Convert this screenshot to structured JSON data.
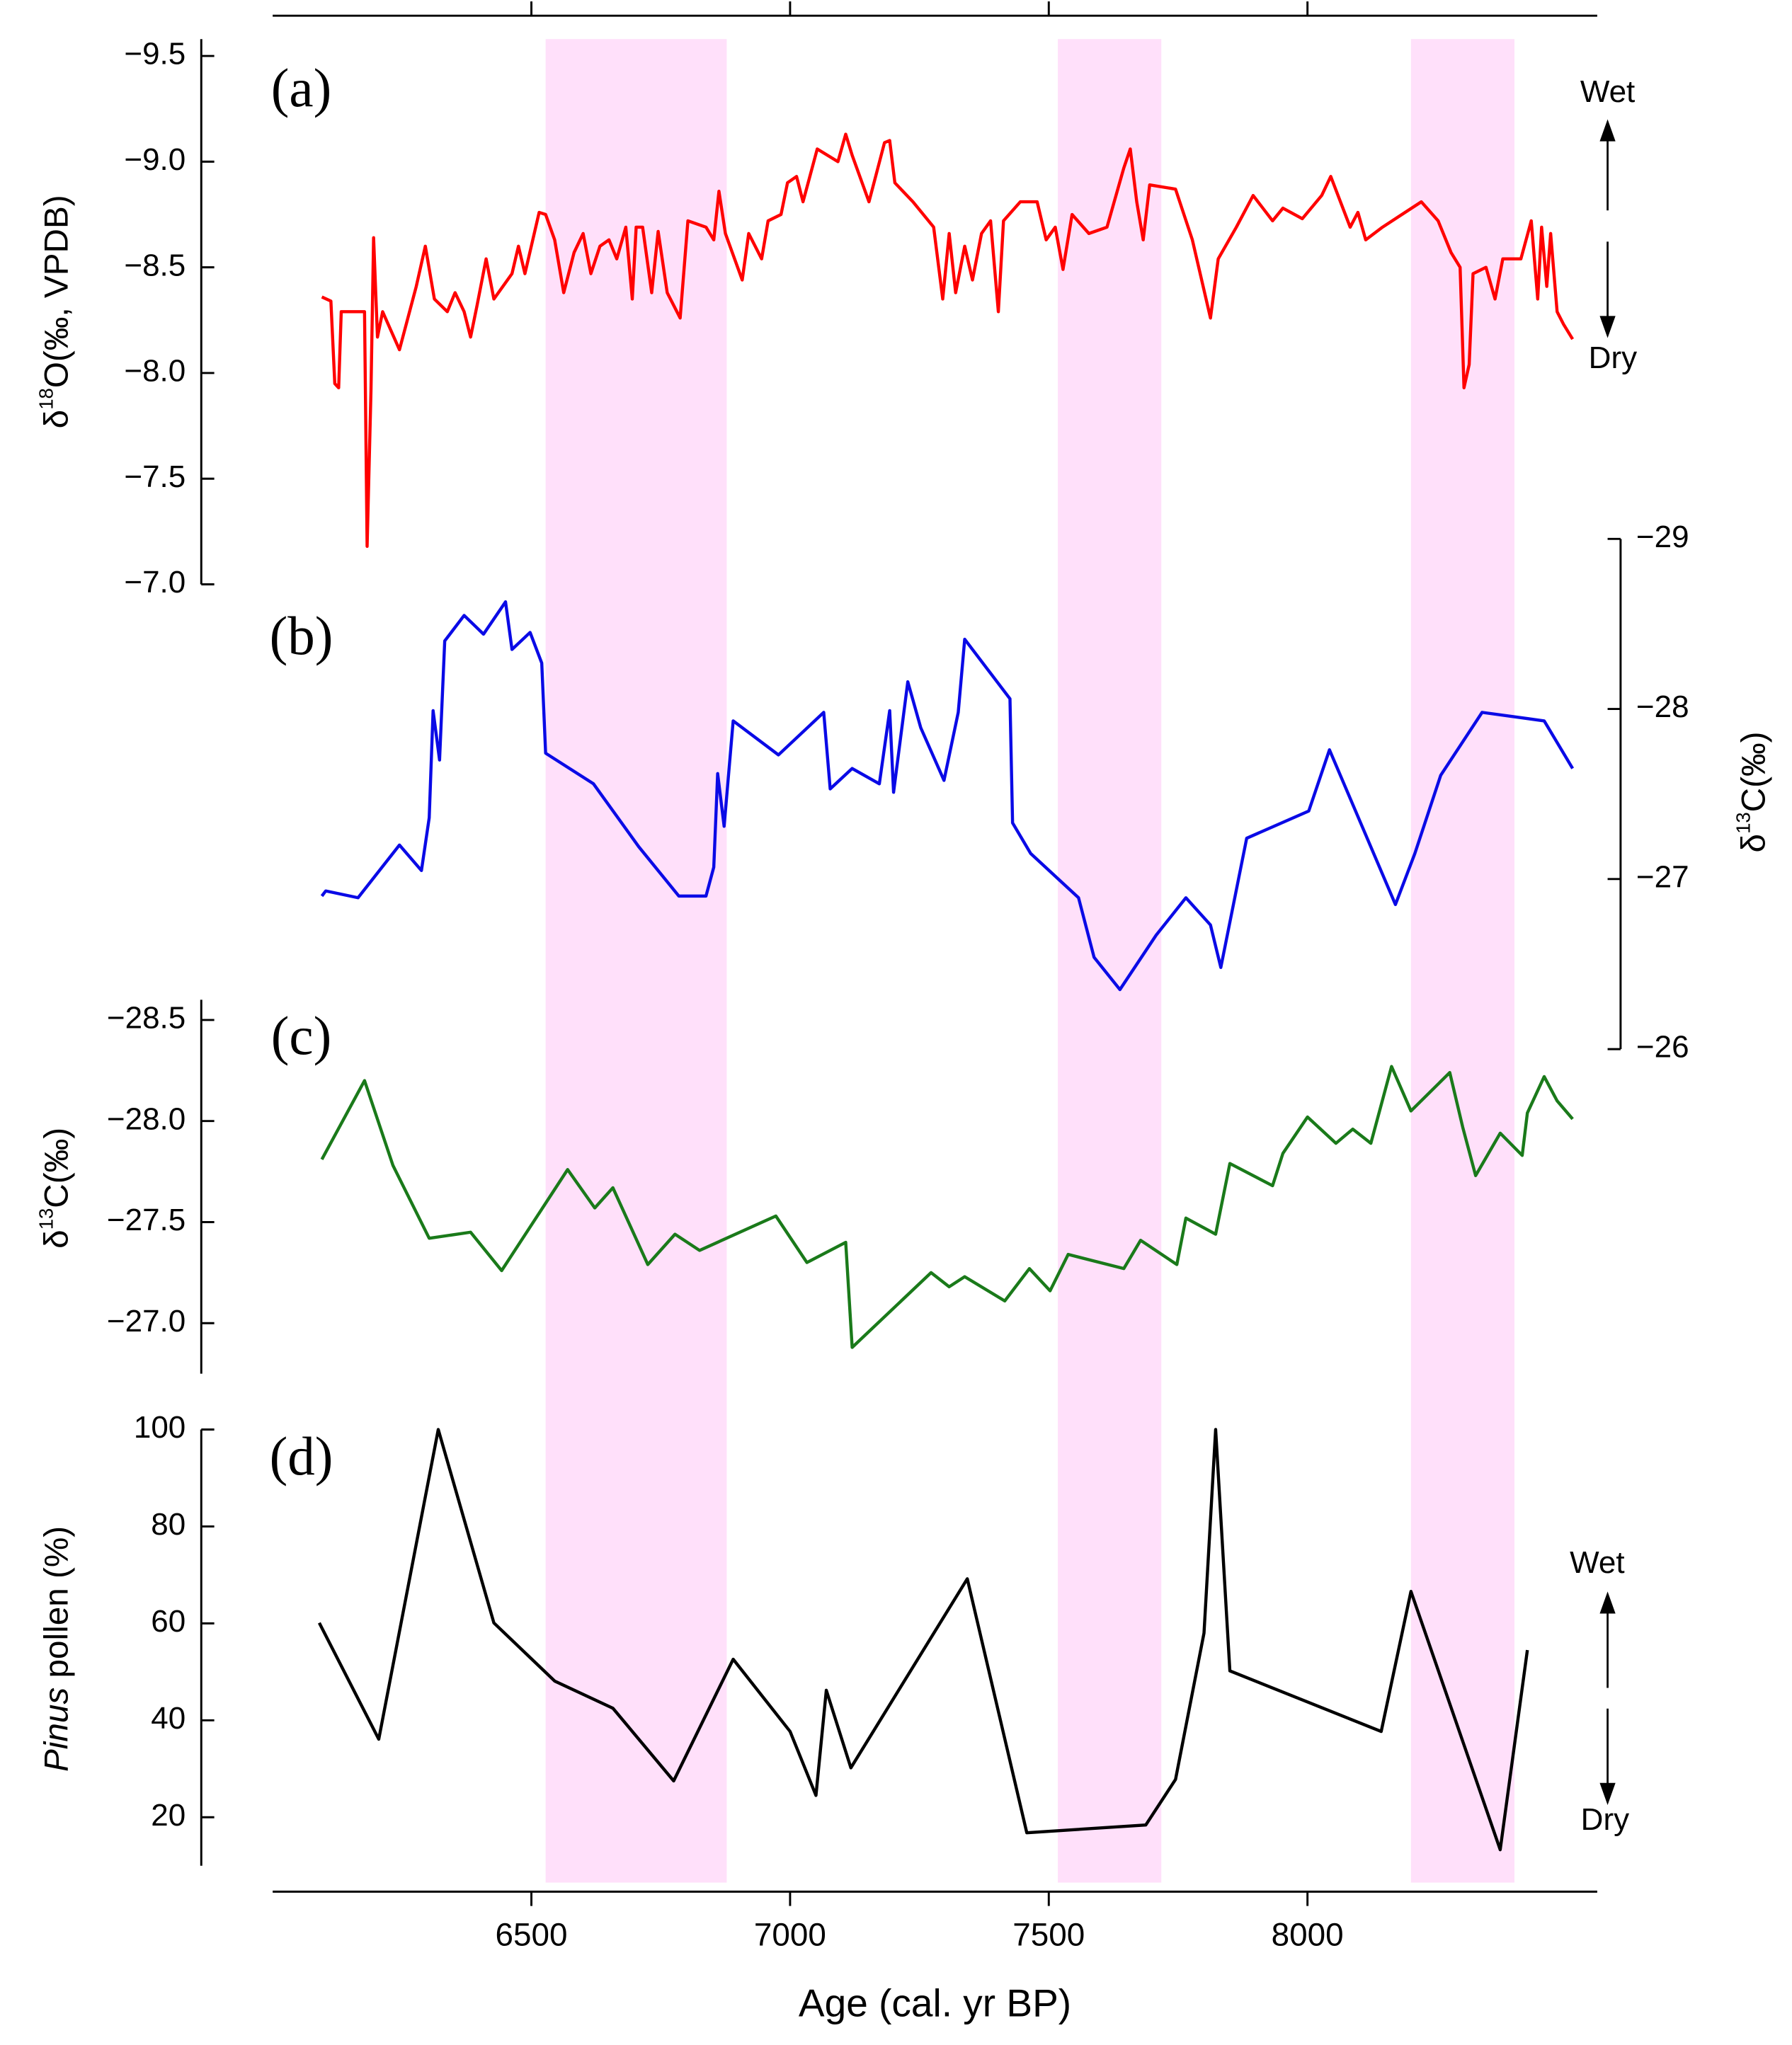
{
  "chart_data": [
    {
      "type": "line",
      "panel_label": "(a)",
      "color": "#ff0000",
      "ylabel": {
        "prefix": "δ",
        "sup": "18",
        "rest": "O(‰, VPDB)"
      },
      "ylim": [
        -9.58,
        -7.0
      ],
      "y_reversed": true,
      "yticks": [
        {
          "value": -9.5,
          "label": "−9.5"
        },
        {
          "value": -9.0,
          "label": "−9.0"
        },
        {
          "value": -8.5,
          "label": "−8.5"
        },
        {
          "value": -8.0,
          "label": "−8.0"
        },
        {
          "value": -7.5,
          "label": "−7.5"
        },
        {
          "value": -7.0,
          "label": "−7.0"
        }
      ],
      "annotations": [
        "Wet",
        "Dry"
      ],
      "x": [
        6095,
        6112.5,
        6120,
        6127.5,
        6132.5,
        6177.5,
        6182.5,
        6190,
        6195,
        6202.5,
        6212.5,
        6245,
        6277.5,
        6295,
        6312.5,
        6337.5,
        6352.5,
        6370,
        6382.5,
        6395,
        6412.5,
        6427.5,
        6462.5,
        6475,
        6487.5,
        6515,
        6527.5,
        6545,
        6562.5,
        6582.5,
        6600,
        6615,
        6632.5,
        6650,
        6665,
        6682.5,
        6695,
        6702.5,
        6715,
        6732.5,
        6745,
        6762.5,
        6787.5,
        6802.5,
        6837.5,
        6852.5,
        6862.5,
        6875,
        6907.5,
        6920,
        6945,
        6957.5,
        6982.5,
        6995,
        7012.5,
        7025,
        7052.5,
        7092.5,
        7107.5,
        7120,
        7152.5,
        7182.5,
        7192.5,
        7202.5,
        7237.5,
        7277.5,
        7295,
        7307.5,
        7320,
        7337.5,
        7352.5,
        7370,
        7387.5,
        7402.5,
        7412.5,
        7445,
        7477.5,
        7495,
        7512.5,
        7527.5,
        7545,
        7577.5,
        7612.5,
        7645,
        7657.5,
        7670,
        7682.5,
        7695,
        7745,
        7777.5,
        7812.5,
        7827.5,
        7862.5,
        7895,
        7932.5,
        7952.5,
        7990,
        8027.5,
        8045,
        8082.5,
        8097.5,
        8112.5,
        8145,
        8182.5,
        8220,
        8252.5,
        8277.5,
        8295,
        8302.5,
        8312.5,
        8320,
        8345,
        8362.5,
        8377.5,
        8412.5,
        8432.5,
        8445,
        8452.5,
        8462.5,
        8470,
        8482.5,
        8495,
        8512.5
      ],
      "values": [
        -8.36,
        -8.34,
        -7.95,
        -7.93,
        -8.29,
        -8.29,
        -7.18,
        -7.92,
        -8.64,
        -8.17,
        -8.29,
        -8.11,
        -8.41,
        -8.6,
        -8.35,
        -8.29,
        -8.38,
        -8.29,
        -8.17,
        -8.32,
        -8.54,
        -8.35,
        -8.47,
        -8.6,
        -8.47,
        -8.76,
        -8.75,
        -8.63,
        -8.38,
        -8.57,
        -8.66,
        -8.47,
        -8.6,
        -8.63,
        -8.54,
        -8.69,
        -8.35,
        -8.69,
        -8.69,
        -8.38,
        -8.67,
        -8.38,
        -8.26,
        -8.72,
        -8.69,
        -8.63,
        -8.86,
        -8.66,
        -8.44,
        -8.66,
        -8.54,
        -8.72,
        -8.75,
        -8.9,
        -8.93,
        -8.81,
        -9.06,
        -9.0,
        -9.13,
        -9.03,
        -8.81,
        -9.09,
        -9.1,
        -8.9,
        -8.81,
        -8.69,
        -8.35,
        -8.66,
        -8.38,
        -8.6,
        -8.44,
        -8.66,
        -8.72,
        -8.29,
        -8.72,
        -8.81,
        -8.81,
        -8.63,
        -8.69,
        -8.49,
        -8.75,
        -8.66,
        -8.69,
        -8.97,
        -9.06,
        -8.81,
        -8.63,
        -8.89,
        -8.87,
        -8.63,
        -8.26,
        -8.54,
        -8.69,
        -8.84,
        -8.72,
        -8.78,
        -8.73,
        -8.84,
        -8.93,
        -8.69,
        -8.76,
        -8.63,
        -8.69,
        -8.75,
        -8.81,
        -8.72,
        -8.57,
        -8.5,
        -7.93,
        -8.04,
        -8.47,
        -8.5,
        -8.35,
        -8.54,
        -8.54,
        -8.72,
        -8.35,
        -8.69,
        -8.41,
        -8.66,
        -8.29,
        -8.23,
        -8.16
      ]
    },
    {
      "type": "line",
      "panel_label": "(b)",
      "color": "#0a0ae6",
      "y_side": "right",
      "ylabel": {
        "prefix": "δ",
        "sup": "13",
        "rest": "C(‰)"
      },
      "ylim": [
        -29,
        -26
      ],
      "y_reversed": true,
      "yticks": [
        {
          "value": -29,
          "label": "−29"
        },
        {
          "value": -28,
          "label": "−28"
        },
        {
          "value": -27,
          "label": "−27"
        },
        {
          "value": -26,
          "label": "−26"
        }
      ],
      "x": [
        6095,
        6102.5,
        6165,
        6245,
        6287.5,
        6302.5,
        6310,
        6322.5,
        6332.5,
        6370,
        6407.5,
        6450,
        6462.5,
        6497.5,
        6520,
        6527.5,
        6620,
        6707.5,
        6785,
        6837.5,
        6852.5,
        6860,
        6872.5,
        6890,
        6977.5,
        7065,
        7077.5,
        7120,
        7172.5,
        7192.5,
        7200,
        7227.5,
        7252.5,
        7297.5,
        7325,
        7337.5,
        7425,
        7430,
        7465,
        7557.5,
        7587.5,
        7637.5,
        7707.5,
        7765,
        7812.5,
        7832.5,
        7882.5,
        8002.5,
        8042.5,
        8170,
        8207.5,
        8257.5,
        8337.5,
        8457.5,
        8512.5
      ],
      "values": [
        -26.9,
        -26.93,
        -26.89,
        -27.2,
        -27.05,
        -27.36,
        -27.99,
        -27.7,
        -28.4,
        -28.55,
        -28.44,
        -28.63,
        -28.35,
        -28.45,
        -28.27,
        -27.74,
        -27.56,
        -27.19,
        -26.9,
        -26.9,
        -27.07,
        -27.62,
        -27.31,
        -27.93,
        -27.73,
        -27.98,
        -27.53,
        -27.65,
        -27.56,
        -27.99,
        -27.51,
        -28.16,
        -27.89,
        -27.58,
        -27.98,
        -28.41,
        -28.06,
        -27.33,
        -27.15,
        -26.89,
        -26.54,
        -26.35,
        -26.67,
        -26.89,
        -26.73,
        -26.48,
        -27.24,
        -27.4,
        -27.76,
        -26.85,
        -27.15,
        -27.61,
        -27.98,
        -27.93,
        -27.65
      ]
    },
    {
      "type": "line",
      "panel_label": "(c)",
      "color": "#1a7a1a",
      "ylabel": {
        "prefix": "δ",
        "sup": "13",
        "rest": "C(‰)"
      },
      "ylim": [
        -28.6,
        -26.75
      ],
      "y_reversed": true,
      "yticks": [
        {
          "value": -28.5,
          "label": "−28.5"
        },
        {
          "value": -28.0,
          "label": "−28.0"
        },
        {
          "value": -27.5,
          "label": "−27.5"
        },
        {
          "value": -27.0,
          "label": "−27.0"
        }
      ],
      "x": [
        6095,
        6177.5,
        6232.5,
        6302.5,
        6382.5,
        6442.5,
        6570,
        6622.5,
        6657.5,
        6725,
        6777.5,
        6825,
        6972.5,
        7032.5,
        7107.5,
        7120,
        7272.5,
        7307.5,
        7337.5,
        7415,
        7462.5,
        7502.5,
        7537.5,
        7645,
        7677.5,
        7747.5,
        7765,
        7822.5,
        7850,
        7932.5,
        7952.5,
        8000,
        8055,
        8087.5,
        8122.5,
        8162.5,
        8200,
        8275,
        8300,
        8325,
        8372.5,
        8415,
        8425,
        8457.5,
        8482.5,
        8512.5
      ],
      "values": [
        -27.81,
        -28.2,
        -27.78,
        -27.42,
        -27.45,
        -27.26,
        -27.76,
        -27.57,
        -27.67,
        -27.29,
        -27.44,
        -27.36,
        -27.53,
        -27.3,
        -27.4,
        -26.88,
        -27.25,
        -27.18,
        -27.23,
        -27.11,
        -27.27,
        -27.16,
        -27.34,
        -27.27,
        -27.41,
        -27.29,
        -27.52,
        -27.44,
        -27.79,
        -27.68,
        -27.84,
        -28.02,
        -27.89,
        -27.96,
        -27.89,
        -28.27,
        -28.05,
        -28.24,
        -27.97,
        -27.73,
        -27.94,
        -27.83,
        -28.04,
        -28.22,
        -28.1,
        -28.01
      ]
    },
    {
      "type": "line",
      "panel_label": "(d)",
      "color": "#000000",
      "ylabel": {
        "italic": "Pinus",
        "rest": " pollen (%)"
      },
      "ylim": [
        10,
        100
      ],
      "yticks": [
        20,
        40,
        60,
        80,
        100
      ],
      "annotations": [
        "Wet",
        "Dry"
      ],
      "xlim": [
        6000,
        8560
      ],
      "xticks": [
        6500,
        7000,
        7500,
        8000
      ],
      "xlabel": "Age (cal. yr BP)",
      "shaded_x_ranges": [
        [
          6527.5,
          6877.5
        ],
        [
          7517.5,
          7717.5
        ],
        [
          8200,
          8400
        ]
      ],
      "shade_color": "#ffe0fa",
      "x": [
        6090,
        6205,
        6320,
        6427.5,
        6545,
        6657.5,
        6775,
        6890,
        7000,
        7050,
        7070,
        7117.5,
        7342.5,
        7457.5,
        7687.5,
        7745,
        7800,
        7822.5,
        7850,
        8142.5,
        8200,
        8372.5,
        8425
      ],
      "values": [
        60.1,
        36.1,
        100,
        60.1,
        48.1,
        42.5,
        27.5,
        52.6,
        37.7,
        24.5,
        46.2,
        30.2,
        69.2,
        16.8,
        18.4,
        27.8,
        58.0,
        100,
        50.2,
        37.7,
        66.6,
        13.3,
        54.5
      ]
    }
  ]
}
